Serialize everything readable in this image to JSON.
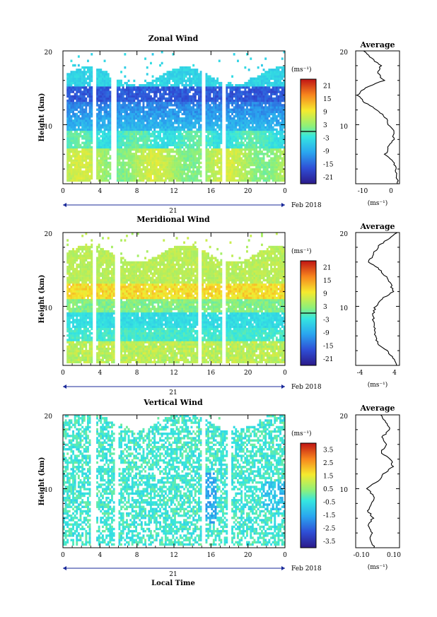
{
  "figure": {
    "date_label": "Feb 2018",
    "day_label": "21",
    "xlabel": "Local Time"
  },
  "chart_data": [
    {
      "type": "heatmap",
      "title": "Zonal Wind",
      "xlabel": "",
      "ylabel": "Height (km)",
      "xlim": [
        0,
        24
      ],
      "ylim": [
        2,
        20
      ],
      "xticks": [
        "0",
        "4",
        "8",
        "12",
        "16",
        "20",
        "0"
      ],
      "yticks": [
        "10",
        "20"
      ],
      "colorbar": {
        "unit": "(ms⁻¹)",
        "ticks": [
          "21",
          "15",
          "9",
          "3",
          "-3",
          "-9",
          "-15",
          "-21"
        ],
        "range": [
          -24,
          24
        ]
      },
      "data_gaps_hours": [
        [
          0,
          0.4
        ],
        [
          3.2,
          3.6
        ],
        [
          5.2,
          5.9
        ],
        [
          14.9,
          15.3
        ],
        [
          17.2,
          17.6
        ]
      ],
      "profile": {
        "title": "Average",
        "xlabel": "(ms⁻¹)",
        "xticks": [
          "-10",
          "0"
        ],
        "yticks": [
          "10",
          "20"
        ],
        "xlim": [
          -12,
          2
        ],
        "heights": [
          2,
          3,
          4,
          5,
          6,
          7,
          8,
          9,
          10,
          11,
          12,
          13,
          14,
          15,
          16,
          17,
          18,
          19,
          20
        ],
        "values": [
          1.5,
          1.2,
          0.8,
          0.2,
          -2.5,
          -1.5,
          0.0,
          0.3,
          -1.5,
          -2.5,
          -5.0,
          -9.0,
          -11.5,
          -9.0,
          -3.0,
          -5.0,
          -4.0,
          -7.0,
          -9.5
        ]
      }
    },
    {
      "type": "heatmap",
      "title": "Meridional Wind",
      "xlabel": "",
      "ylabel": "Height (km)",
      "xlim": [
        0,
        24
      ],
      "ylim": [
        2,
        20
      ],
      "xticks": [
        "0",
        "4",
        "8",
        "12",
        "16",
        "20",
        "0"
      ],
      "yticks": [
        "10",
        "20"
      ],
      "colorbar": {
        "unit": "(ms⁻¹)",
        "ticks": [
          "21",
          "15",
          "9",
          "3",
          "-3",
          "-9",
          "-15",
          "-21"
        ],
        "range": [
          -24,
          24
        ]
      },
      "data_gaps_hours": [
        [
          0,
          0.4
        ],
        [
          3.2,
          3.6
        ],
        [
          5.6,
          6.2
        ],
        [
          14.6,
          15.0
        ],
        [
          17.2,
          17.6
        ]
      ],
      "profile": {
        "title": "Average",
        "xlabel": "(ms⁻¹)",
        "xticks": [
          "-4",
          "4"
        ],
        "yticks": [
          "10",
          "20"
        ],
        "xlim": [
          -5,
          5
        ],
        "heights": [
          2,
          3,
          4,
          5,
          6,
          7,
          8,
          9,
          10,
          11,
          12,
          13,
          14,
          15,
          16,
          17,
          18,
          19,
          20
        ],
        "values": [
          4.2,
          3.5,
          2.0,
          0.0,
          -0.5,
          -0.5,
          -1.0,
          -1.0,
          -0.5,
          1.0,
          3.5,
          3.0,
          2.0,
          0.5,
          -2.0,
          -1.0,
          0.0,
          2.0,
          4.5
        ]
      }
    },
    {
      "type": "heatmap",
      "title": "Vertical Wind",
      "xlabel": "Local Time",
      "ylabel": "Height (km)",
      "xlim": [
        0,
        24
      ],
      "ylim": [
        2,
        20
      ],
      "xticks": [
        "0",
        "4",
        "8",
        "12",
        "16",
        "20",
        "0"
      ],
      "yticks": [
        "10",
        "20"
      ],
      "colorbar": {
        "unit": "(ms⁻¹)",
        "ticks": [
          "3.5",
          "2.5",
          "1.5",
          "0.5",
          "-0.5",
          "-1.5",
          "-2.5",
          "-3.5"
        ],
        "range": [
          -4,
          4
        ]
      },
      "data_gaps_hours": [
        [
          0,
          0.1
        ],
        [
          3.1,
          3.6
        ],
        [
          5.7,
          6.1
        ],
        [
          15.0,
          15.3
        ],
        [
          17.8,
          18.2
        ]
      ],
      "profile": {
        "title": "Average",
        "xlabel": "(ms⁻¹)",
        "xticks": [
          "-0.10",
          "0.10"
        ],
        "yticks": [
          "10",
          "20"
        ],
        "xlim": [
          -0.14,
          0.14
        ],
        "heights": [
          2,
          3,
          4,
          5,
          6,
          7,
          8,
          9,
          10,
          11,
          12,
          13,
          14,
          15,
          16,
          17,
          18,
          19,
          20
        ],
        "values": [
          -0.02,
          -0.05,
          -0.04,
          -0.06,
          -0.03,
          -0.06,
          -0.04,
          -0.02,
          -0.07,
          0.0,
          0.04,
          0.1,
          0.08,
          0.02,
          0.06,
          0.03,
          0.08,
          0.05,
          0.02
        ]
      }
    }
  ]
}
